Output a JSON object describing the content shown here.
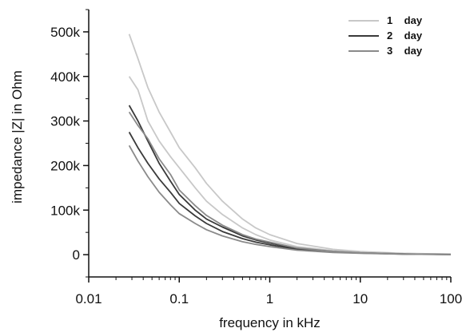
{
  "chart_data": {
    "type": "line",
    "xlabel": "frequency in kHz",
    "ylabel": "impedance |Z| in Ohm",
    "x_scale": "log",
    "xlim": [
      0.01,
      100
    ],
    "ylim": [
      -50000,
      550000
    ],
    "x_ticks": [
      {
        "value": 0.01,
        "label": "0.01"
      },
      {
        "value": 0.1,
        "label": "0.1"
      },
      {
        "value": 1,
        "label": "1"
      },
      {
        "value": 10,
        "label": "10"
      },
      {
        "value": 100,
        "label": "100"
      }
    ],
    "y_ticks": [
      {
        "value": 0,
        "label": "0"
      },
      {
        "value": 100000,
        "label": "100k"
      },
      {
        "value": 200000,
        "label": "200k"
      },
      {
        "value": 300000,
        "label": "300k"
      },
      {
        "value": 400000,
        "label": "400k"
      },
      {
        "value": 500000,
        "label": "500k"
      }
    ],
    "grid": false,
    "legend_position": "top-right",
    "series": [
      {
        "name": "1    day",
        "color": "#c8c8c8",
        "curves": [
          {
            "x": [
              0.028,
              0.035,
              0.045,
              0.06,
              0.08,
              0.1,
              0.15,
              0.2,
              0.3,
              0.5,
              0.7,
              1,
              2,
              5,
              10,
              30,
              100
            ],
            "y": [
              495000,
              440000,
              375000,
              320000,
              275000,
              240000,
              195000,
              160000,
              120000,
              80000,
              60000,
              45000,
              25000,
              12000,
              7000,
              3000,
              1000
            ]
          },
          {
            "x": [
              0.028,
              0.035,
              0.045,
              0.06,
              0.08,
              0.1,
              0.15,
              0.2,
              0.3,
              0.5,
              0.7,
              1,
              2,
              5,
              10,
              30,
              100
            ],
            "y": [
              400000,
              370000,
              300000,
              255000,
              220000,
              195000,
              150000,
              120000,
              90000,
              60000,
              45000,
              33000,
              18000,
              9000,
              5000,
              2000,
              800
            ]
          }
        ]
      },
      {
        "name": "2    day",
        "color": "#3a3a3a",
        "curves": [
          {
            "x": [
              0.028,
              0.035,
              0.045,
              0.06,
              0.08,
              0.1,
              0.15,
              0.2,
              0.3,
              0.5,
              0.7,
              1,
              2,
              5,
              10,
              30,
              100
            ],
            "y": [
              335000,
              300000,
              255000,
              205000,
              165000,
              135000,
              100000,
              80000,
              62000,
              42000,
              33000,
              26000,
              14000,
              7000,
              4000,
              1500,
              500
            ]
          },
          {
            "x": [
              0.028,
              0.035,
              0.045,
              0.06,
              0.08,
              0.1,
              0.15,
              0.2,
              0.3,
              0.5,
              0.7,
              1,
              2,
              5,
              10,
              30,
              100
            ],
            "y": [
              275000,
              240000,
              205000,
              170000,
              140000,
              115000,
              87000,
              70000,
              52000,
              36000,
              28000,
              22000,
              12000,
              6000,
              3500,
              1200,
              400
            ]
          }
        ]
      },
      {
        "name": "3    day",
        "color": "#8a8a8a",
        "curves": [
          {
            "x": [
              0.028,
              0.035,
              0.045,
              0.06,
              0.08,
              0.1,
              0.15,
              0.2,
              0.3,
              0.5,
              0.7,
              1,
              2,
              5,
              10,
              30,
              100
            ],
            "y": [
              320000,
              290000,
              260000,
              215000,
              180000,
              145000,
              110000,
              88000,
              66000,
              45000,
              35000,
              28000,
              15000,
              7500,
              4200,
              1500,
              500
            ]
          },
          {
            "x": [
              0.028,
              0.035,
              0.045,
              0.06,
              0.08,
              0.1,
              0.15,
              0.2,
              0.3,
              0.5,
              0.7,
              1,
              2,
              5,
              10,
              30,
              100
            ],
            "y": [
              245000,
              210000,
              175000,
              140000,
              112000,
              92000,
              70000,
              56000,
              42000,
              29000,
              23000,
              18000,
              10000,
              5000,
              3000,
              1000,
              300
            ]
          }
        ]
      }
    ]
  }
}
